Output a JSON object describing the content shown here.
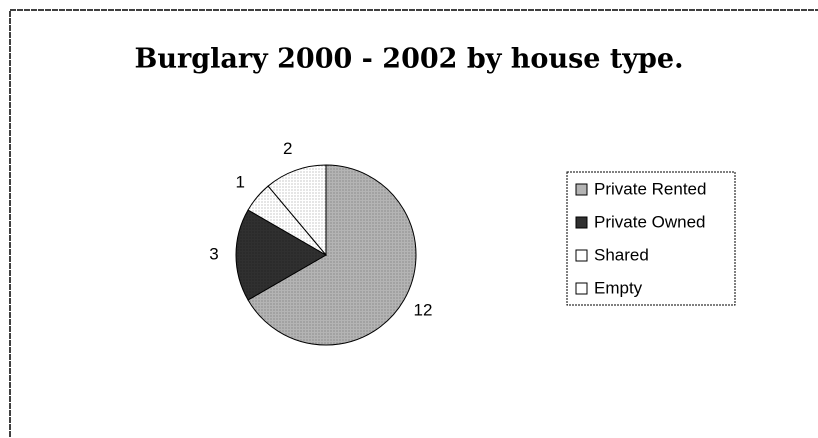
{
  "chart_data": {
    "type": "pie",
    "title": "Burglary 2000 - 2002 by house type.",
    "categories": [
      "Private Rented",
      "Private Owned",
      "Shared",
      "Empty"
    ],
    "values": [
      12,
      3,
      1,
      2
    ],
    "colors": [
      "#b4b4b4",
      "#303030",
      "#ffffff",
      "#ffffff"
    ],
    "legend": "right"
  }
}
